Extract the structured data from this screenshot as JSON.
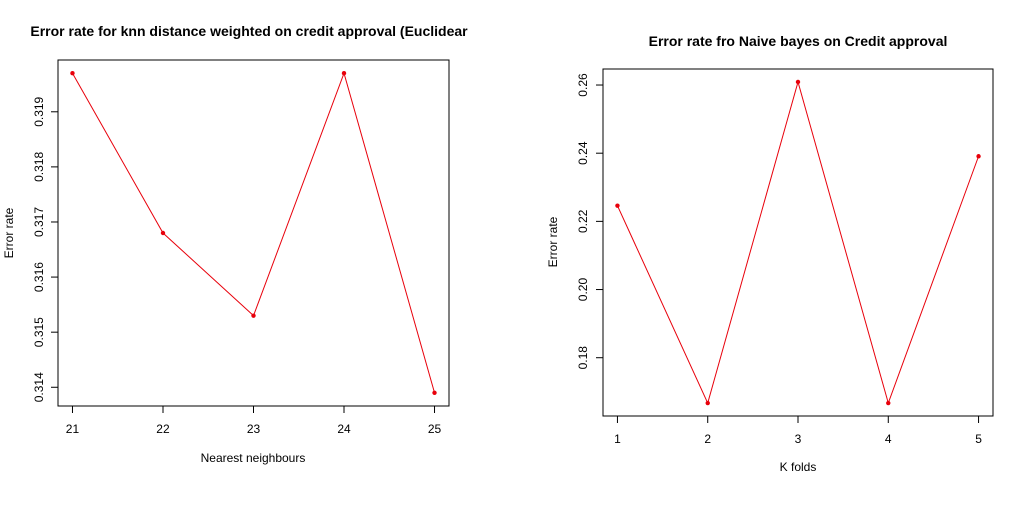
{
  "chart_data": [
    {
      "type": "line",
      "title": "Error rate for knn distance weighted on credit approval (Euclidear",
      "xlabel": "Nearest neighbours",
      "ylabel": "Error rate",
      "x": [
        21,
        22,
        23,
        24,
        25
      ],
      "y": [
        0.3197,
        0.3168,
        0.3153,
        0.3197,
        0.3139
      ],
      "x_ticks": [
        "21",
        "22",
        "23",
        "24",
        "25"
      ],
      "y_ticks": [
        "0.314",
        "0.315",
        "0.316",
        "0.317",
        "0.318",
        "0.319"
      ],
      "y_tick_values": [
        0.314,
        0.315,
        0.316,
        0.317,
        0.318,
        0.319
      ],
      "xlim": [
        20.84,
        25.16
      ],
      "ylim": [
        0.31366,
        0.31994
      ],
      "color": "#e8000b",
      "grid": false
    },
    {
      "type": "line",
      "title": "Error rate fro Naive bayes on Credit approval",
      "xlabel": "K folds",
      "ylabel": "Error rate",
      "x": [
        1,
        2,
        3,
        4,
        5
      ],
      "y": [
        0.2246,
        0.1667,
        0.2609,
        0.1667,
        0.2391
      ],
      "x_ticks": [
        "1",
        "2",
        "3",
        "4",
        "5"
      ],
      "y_ticks": [
        "0.18",
        "0.20",
        "0.22",
        "0.24",
        "0.26"
      ],
      "y_tick_values": [
        0.18,
        0.2,
        0.22,
        0.24,
        0.26
      ],
      "xlim": [
        0.84,
        5.16
      ],
      "ylim": [
        0.1629,
        0.2647
      ],
      "color": "#e8000b",
      "grid": false
    }
  ]
}
